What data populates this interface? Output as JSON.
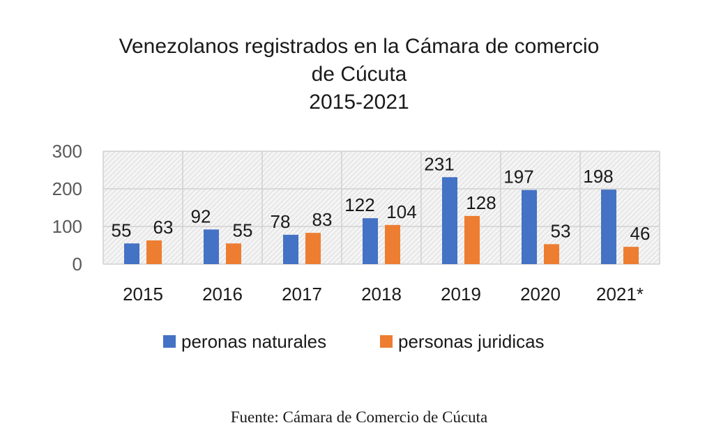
{
  "chart_data": {
    "type": "bar",
    "title_lines": [
      "Venezolanos registrados en la Cámara de comercio",
      "de Cúcuta",
      "2015-2021"
    ],
    "categories": [
      "2015",
      "2016",
      "2017",
      "2018",
      "2019",
      "2020",
      "2021*"
    ],
    "series": [
      {
        "name": "peronas naturales",
        "color": "#4472C4",
        "values": [
          55,
          92,
          78,
          122,
          231,
          197,
          198
        ]
      },
      {
        "name": "personas juridicas",
        "color": "#ED7D31",
        "values": [
          63,
          55,
          83,
          104,
          128,
          53,
          46
        ]
      }
    ],
    "ylim": [
      0,
      300
    ],
    "yticks": [
      0,
      100,
      200,
      300
    ],
    "grid": true,
    "data_labels": true,
    "legend_position": "bottom",
    "plot_background": "hatched light gray"
  },
  "source_note": "Fuente: Cámara de Comercio de Cúcuta"
}
